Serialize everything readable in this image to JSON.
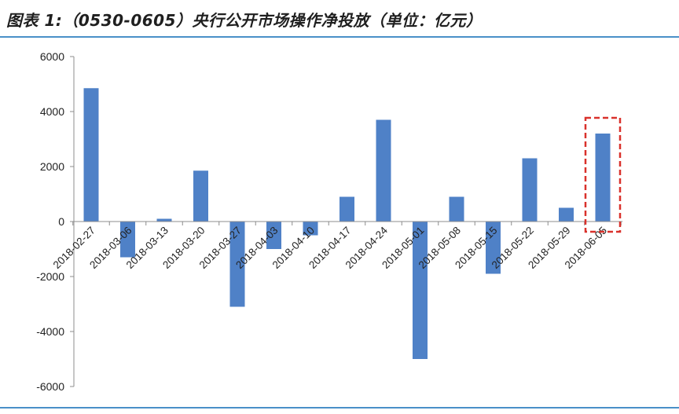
{
  "title": "图表 1:（0530-0605）央行公开市场操作净投放（单位：亿元）",
  "chart_data": {
    "type": "bar",
    "title": "图表 1:（0530-0605）央行公开市场操作净投放（单位：亿元）",
    "xlabel": "",
    "ylabel": "",
    "categories": [
      "2018-02-27",
      "2018-03-06",
      "2018-03-13",
      "2018-03-20",
      "2018-03-27",
      "2018-04-03",
      "2018-04-10",
      "2018-04-17",
      "2018-04-24",
      "2018-05-01",
      "2018-05-08",
      "2018-05-15",
      "2018-05-22",
      "2018-05-29",
      "2018-06-05"
    ],
    "values": [
      4850,
      -1300,
      100,
      1850,
      -3100,
      -1000,
      -500,
      900,
      3700,
      -5000,
      900,
      -1900,
      2300,
      500,
      3200
    ],
    "ylim": [
      -6000,
      6000
    ],
    "yticks": [
      6000,
      4000,
      2000,
      0,
      -2000,
      -4000,
      -6000
    ],
    "ytick_labels": [
      "6000",
      "4000",
      "2000",
      "0",
      "-2000",
      "-4000",
      "-6000"
    ],
    "grid": false,
    "legend": "none",
    "bar_color": "#4f81c7",
    "highlight_category": "2018-06-05",
    "highlight_color": "#d9312b"
  }
}
